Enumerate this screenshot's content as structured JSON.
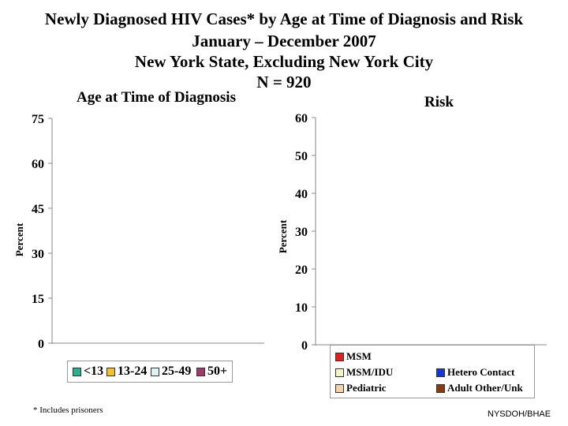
{
  "title": {
    "line1": "Newly Diagnosed HIV Cases* by Age at Time of Diagnosis and Risk",
    "line2": "January – December 2007",
    "line3": "New York State, Excluding New York City",
    "line4": "N = 920"
  },
  "footnote": "* Includes prisoners",
  "credit": "NYSDOH/BHAE",
  "chart_data": [
    {
      "type": "bar",
      "title": "Age at Time of Diagnosis",
      "ylabel": "Percent",
      "xlabel": "",
      "ylim": [
        0,
        75
      ],
      "yticks": [
        "0",
        "15",
        "30",
        "45",
        "60",
        "75"
      ],
      "categories": [],
      "series": [
        {
          "name": "<13",
          "values": []
        },
        {
          "name": "13-24",
          "values": []
        },
        {
          "name": "25-49",
          "values": []
        },
        {
          "name": "50+",
          "values": []
        }
      ],
      "legend": {
        "placement": "bottom",
        "colors": [
          "#2bb08f",
          "#f2c12e",
          "#dff3f7",
          "#9b3d6b"
        ]
      },
      "grid": false
    },
    {
      "type": "bar",
      "title": "Risk",
      "ylabel": "Percent",
      "xlabel": "",
      "ylim": [
        0,
        60
      ],
      "yticks": [
        "0",
        "10",
        "20",
        "30",
        "40",
        "50",
        "60"
      ],
      "categories": [],
      "series": [
        {
          "name": "MSM",
          "values": []
        },
        {
          "name": "MSM/IDU",
          "values": []
        },
        {
          "name": "Pediatric",
          "values": []
        },
        {
          "name": "Hetero Contact",
          "values": []
        },
        {
          "name": "Adult Other/Unk",
          "values": []
        }
      ],
      "legend": {
        "placement": "bottom",
        "colors": [
          "#e02020",
          "#f5f5c8",
          "#f3d2a8",
          "#1a35d6",
          "#8a3a10"
        ]
      },
      "grid": false
    }
  ]
}
